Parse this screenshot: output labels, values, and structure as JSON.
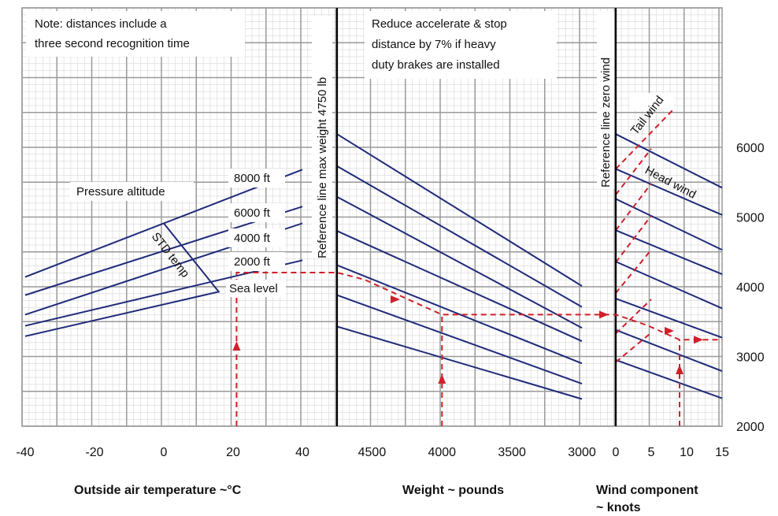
{
  "chart_data": {
    "type": "line",
    "title": "",
    "panels": {
      "temperature": {
        "xlabel": "Outside air temperature ~°C",
        "ticks": [
          "-40",
          "-20",
          "0",
          "20",
          "40"
        ],
        "xlim": [
          -40,
          40
        ],
        "pressure_altitude_label": "Pressure altitude",
        "std_temp_label": "STD temp",
        "series": [
          {
            "name": "Sea level",
            "x": [
              -40,
              16
            ],
            "y": [
              3290,
              3930
            ]
          },
          {
            "name": "2000 ft",
            "x": [
              -40,
              40
            ],
            "y": [
              3440,
              4380
            ]
          },
          {
            "name": "4000 ft",
            "x": [
              -40,
              40
            ],
            "y": [
              3600,
              4910
            ]
          },
          {
            "name": "6000 ft",
            "x": [
              -40,
              40
            ],
            "y": [
              3880,
              5150
            ]
          },
          {
            "name": "8000 ft",
            "x": [
              -40,
              40
            ],
            "y": [
              4140,
              5680
            ]
          }
        ],
        "std_temp_line": {
          "x": [
            0,
            16
          ],
          "y": [
            4910,
            3920
          ]
        }
      },
      "weight": {
        "xlabel": "Weight ~ pounds",
        "ticks": [
          "4500",
          "4000",
          "3500",
          "3000"
        ],
        "xlim": [
          4750,
          3000
        ],
        "reference_line_label": "Reference line max weight 4750 lb",
        "guide_lines": [
          {
            "x": [
              4750,
              3000
            ],
            "y": [
              6190,
              4010
            ]
          },
          {
            "x": [
              4750,
              3000
            ],
            "y": [
              5730,
              3710
            ]
          },
          {
            "x": [
              4750,
              3000
            ],
            "y": [
              5290,
              3410
            ]
          },
          {
            "x": [
              4750,
              3000
            ],
            "y": [
              4800,
              3220
            ]
          },
          {
            "x": [
              4750,
              3000
            ],
            "y": [
              4310,
              2900
            ]
          },
          {
            "x": [
              4750,
              3000
            ],
            "y": [
              3880,
              2610
            ]
          },
          {
            "x": [
              4750,
              3000
            ],
            "y": [
              3430,
              2390
            ]
          }
        ]
      },
      "wind": {
        "xlabel": "Wind component ~ knots",
        "ticks": [
          "0",
          "5",
          "10",
          "15"
        ],
        "xlim": [
          0,
          15
        ],
        "reference_line_label": "Reference line zero wind",
        "tail_wind_label": "Tail wind",
        "head_wind_label": "Head wind",
        "head_wind_lines": [
          {
            "x": [
              0,
              15
            ],
            "y": [
              6190,
              5420
            ]
          },
          {
            "x": [
              0,
              15
            ],
            "y": [
              5690,
              5030
            ]
          },
          {
            "x": [
              0,
              15
            ],
            "y": [
              5260,
              4530
            ]
          },
          {
            "x": [
              0,
              15
            ],
            "y": [
              4810,
              4180
            ]
          },
          {
            "x": [
              0,
              15
            ],
            "y": [
              4360,
              3690
            ]
          },
          {
            "x": [
              0,
              15
            ],
            "y": [
              3830,
              3270
            ]
          },
          {
            "x": [
              0,
              15
            ],
            "y": [
              3380,
              2790
            ]
          },
          {
            "x": [
              0,
              15
            ],
            "y": [
              2950,
              2400
            ]
          }
        ],
        "tail_wind_lines": [
          {
            "x": [
              0,
              5
            ],
            "y": [
              2920,
              3340
            ]
          },
          {
            "x": [
              0,
              5
            ],
            "y": [
              3330,
              3820
            ]
          },
          {
            "x": [
              0,
              5
            ],
            "y": [
              3910,
              4530
            ]
          },
          {
            "x": [
              0,
              5
            ],
            "y": [
              4350,
              5020
            ]
          },
          {
            "x": [
              0,
              5
            ],
            "y": [
              4810,
              5480
            ]
          },
          {
            "x": [
              0,
              5
            ],
            "y": [
              5320,
              5980
            ]
          },
          {
            "x": [
              0,
              8
            ],
            "y": [
              5690,
              6530
            ]
          }
        ]
      }
    },
    "ylabel": "",
    "yticks": [
      "2000",
      "3000",
      "4000",
      "5000",
      "6000"
    ],
    "ylim": [
      2000,
      6000
    ],
    "notes": [
      "Note: distances include a",
      "three second recognition time",
      "Reduce accelerate & stop",
      "distance by 7% if heavy",
      "duty brakes are installed"
    ],
    "example_path": {
      "temperature_start": 21,
      "pressure_altitude": "2000 ft",
      "weight": 4000,
      "wind_knots": 9,
      "result": 3240
    },
    "colors": {
      "line": "#1f2a7a",
      "dashed": "#d0202a",
      "grid": "#9a9a9a",
      "grid_minor": "#d6d6d6",
      "reference": "#000000"
    }
  }
}
